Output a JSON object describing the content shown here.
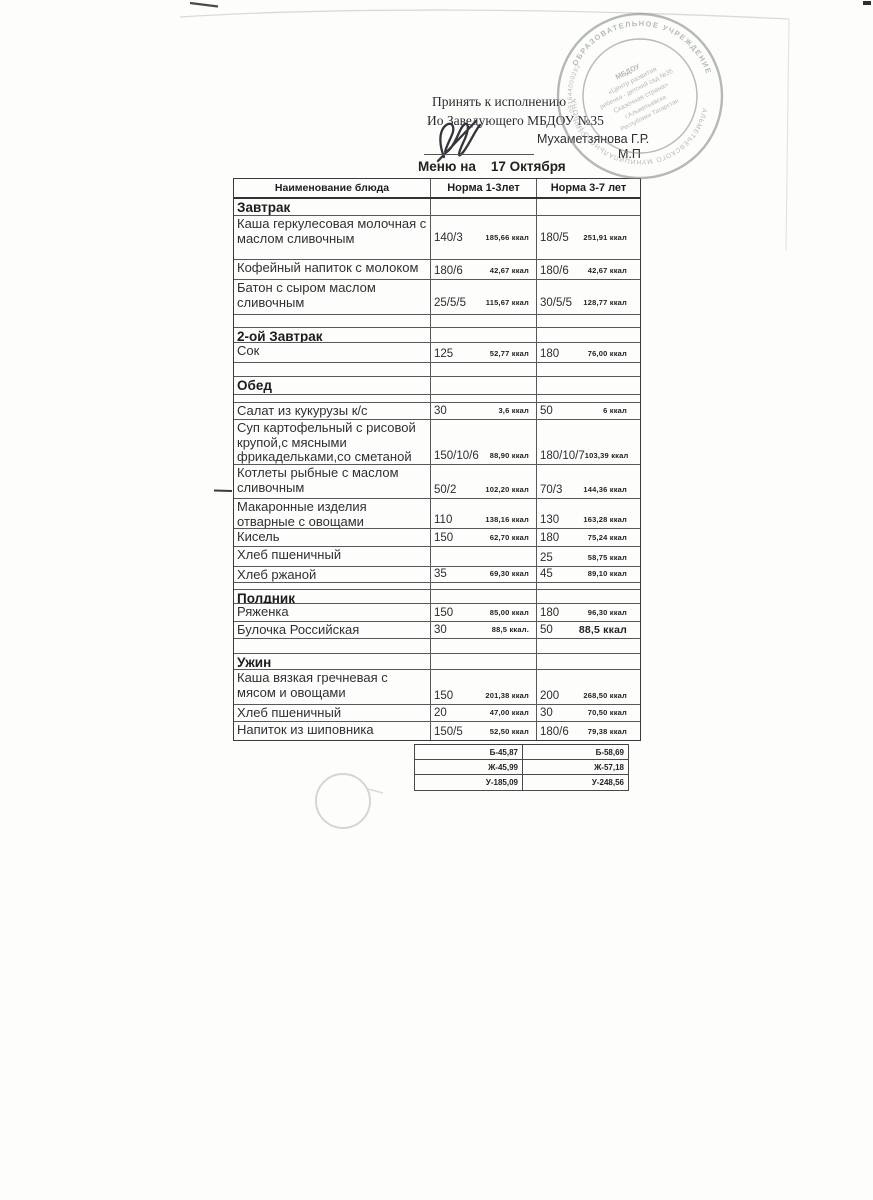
{
  "approval": {
    "line1": "Принять к исполнению",
    "line2": "Ио Заведующего МБДОУ №35",
    "signed_by": "Мухаметзянова Г.Р.",
    "mp": "М.П"
  },
  "title": "Меню на    17 Октября",
  "stamp": {
    "color": "#87918a",
    "ring_top": "ОБРАЗОВАТЕЛЬНОЕ  УЧРЕЖДЕНИЕ",
    "ring_bottom": "АЛЬМЕТЬЕВСКОГО МУНИЦИПАЛЬНОГО РАЙОНА",
    "ogrn": "ОГРН 1091644000292",
    "center_lines": [
      "МБДОУ",
      "«Центр развития",
      "ребенка - детский сад №35",
      "Сказочная страна»",
      "г.Альметьевска",
      "Республики Татарстан"
    ]
  },
  "table": {
    "headers": [
      "Наименование блюда",
      "Норма 1-3лет",
      "Норма 3-7 лет"
    ],
    "rows": [
      {
        "type": "header",
        "h": 20
      },
      {
        "type": "section",
        "name": "Завтрак",
        "h": 17
      },
      {
        "type": "dish",
        "name": "Каша геркулесовая молочная с маслом сливочным",
        "q1": "140/3",
        "k1": "185,66 ккал",
        "q2": "180/5",
        "k2": "251,91 ккал",
        "h": 44,
        "vpad": 15
      },
      {
        "type": "dish",
        "name": "Кофейный напиток  с  молоком",
        "q1": "180/6",
        "k1": "42,67 ккал",
        "q2": "180/6",
        "k2": "42,67 ккал",
        "h": 20
      },
      {
        "type": "dish",
        "name": "Батон с сыром маслом сливочным",
        "q1": "25/5/5",
        "k1": "115,67 ккал",
        "q2": "30/5/5",
        "k2": "128,77 ккал",
        "h": 35,
        "vpad": 5
      },
      {
        "type": "spacer",
        "h": 13
      },
      {
        "type": "section",
        "name": "2-ой Завтрак",
        "h": 15
      },
      {
        "type": "dish",
        "name": "Сок",
        "q1": "125",
        "k1": "52,77 ккал",
        "q2": "180",
        "k2": "76,00 ккал",
        "h": 20
      },
      {
        "type": "spacer",
        "h": 14
      },
      {
        "type": "section",
        "name": "Обед",
        "h": 18
      },
      {
        "type": "spacer",
        "h": 8
      },
      {
        "type": "dish",
        "name": "Салат из кукурузы к/с",
        "q1": "30",
        "k1": "3,6 ккал",
        "q2": "50",
        "k2": "6 ккал",
        "h": 17
      },
      {
        "type": "dish",
        "name": "Суп картофельный с рисовой крупой,с мясными фрикадельками,со сметаной",
        "q1": "150/10/6",
        "k1": "88,90 ккал",
        "q2": "180/10/7",
        "k2": "103,39 ккал",
        "h": 45
      },
      {
        "type": "dish",
        "name": "Котлеты рыбные с маслом сливочным",
        "q1": "50/2",
        "k1": "102,20 ккал",
        "q2": "70/3",
        "k2": "144,36 ккал",
        "h": 34
      },
      {
        "type": "dish",
        "name": "Макаронные изделия отварные с овощами",
        "q1": "110",
        "k1": "138,16 ккал",
        "q2": "130",
        "k2": "163,28 ккал",
        "h": 30
      },
      {
        "type": "dish",
        "name": "Кисель",
        "q1": "150",
        "k1": "62,70 ккал",
        "q2": "180",
        "k2": "75,24 ккал",
        "h": 18
      },
      {
        "type": "dish",
        "name": "Хлеб пшеничный",
        "q1": "",
        "k1": "",
        "q2": "25",
        "k2": "58,75 ккал",
        "h": 20
      },
      {
        "type": "dish",
        "name": "Хлеб ржаной",
        "q1": "35",
        "k1": "69,30 ккал",
        "q2": "45",
        "k2": "89,10 ккал",
        "h": 16
      },
      {
        "type": "spacer",
        "h": 7
      },
      {
        "type": "section",
        "name": "Полдник",
        "h": 14
      },
      {
        "type": "dish",
        "name": "Ряженка",
        "q1": "150",
        "k1": "85,00 ккал",
        "q2": "180",
        "k2": "96,30 ккал",
        "h": 18
      },
      {
        "type": "dish",
        "name": "Булочка Российская",
        "q1": "30",
        "k1": "88,5 ккал.",
        "q2": "50",
        "k2": "88,5 ккал",
        "h": 17,
        "big": true
      },
      {
        "type": "spacer",
        "h": 15
      },
      {
        "type": "section",
        "name": "Ужин",
        "h": 16
      },
      {
        "type": "dish",
        "name": "Каша вязкая гречневая с мясом и овощами",
        "q1": "150",
        "k1": "201,38 ккал",
        "q2": "200",
        "k2": "268,50 ккал",
        "h": 35
      },
      {
        "type": "dish",
        "name": "Хлеб пшеничный",
        "q1": "20",
        "k1": "47,00 ккал",
        "q2": "30",
        "k2": "70,50 ккал",
        "h": 17
      },
      {
        "type": "dish",
        "name": "Напиток из шиповника",
        "q1": "150/5",
        "k1": "52,50 ккал",
        "q2": "180/6",
        "k2": "79,38 ккал",
        "h": 18
      }
    ]
  },
  "totals": {
    "rows": [
      [
        "Б-45,87",
        "Б-58,69"
      ],
      [
        "Ж-45,99",
        "Ж-57,18"
      ],
      [
        "У-185,09",
        "У-248,56"
      ]
    ]
  }
}
